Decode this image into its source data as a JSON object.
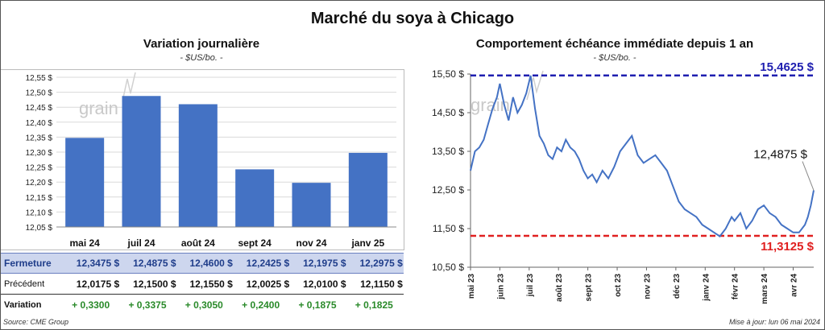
{
  "main_title": "Marché du soya à Chicago",
  "left": {
    "title": "Variation journalière",
    "unit": "- $US/bo. -",
    "watermark": "grain"
  },
  "right": {
    "title": "Comportement échéance immédiate depuis 1 an",
    "unit": "- $US/bo. -",
    "watermark": "grain",
    "high_label": "15,4625 $",
    "low_label": "11,3125 $",
    "last_label": "12,4875 $"
  },
  "table": {
    "close_label": "Fermeture",
    "prev_label": "Précédent",
    "var_label": "Variation",
    "close": [
      "12,3475 $",
      "12,4875 $",
      "12,4600 $",
      "12,2425 $",
      "12,1975 $",
      "12,2975 $"
    ],
    "prev": [
      "12,0175 $",
      "12,1500 $",
      "12,1550 $",
      "12,0025 $",
      "12,0100 $",
      "12,1150 $"
    ],
    "var": [
      "+ 0,3300",
      "+ 0,3375",
      "+ 0,3050",
      "+ 0,2400",
      "+ 0,1875",
      "+ 0,1825"
    ]
  },
  "footer": {
    "source": "Source: CME Group",
    "updated": "Mise à jour: lun 06 mai 2024"
  },
  "chart_data": [
    {
      "type": "bar",
      "title": "Variation journalière",
      "categories": [
        "mai 24",
        "juil 24",
        "août 24",
        "sept 24",
        "nov 24",
        "janv 25"
      ],
      "values": [
        12.3475,
        12.4875,
        12.46,
        12.2425,
        12.1975,
        12.2975
      ],
      "ylim": [
        12.05,
        12.55
      ],
      "yticks": [
        "12,05 $",
        "12,10 $",
        "12,15 $",
        "12,20 $",
        "12,25 $",
        "12,30 $",
        "12,35 $",
        "12,40 $",
        "12,45 $",
        "12,50 $",
        "12,55 $"
      ],
      "color": "#4472c4",
      "grid": true
    },
    {
      "type": "line",
      "title": "Comportement échéance immédiate depuis 1 an",
      "ylim": [
        10.5,
        15.5
      ],
      "yticks": [
        "10,50 $",
        "11,50 $",
        "12,50 $",
        "13,50 $",
        "14,50 $",
        "15,50 $"
      ],
      "xticks": [
        "mai 23",
        "juin 23",
        "juil 23",
        "août 23",
        "sept 23",
        "oct 23",
        "nov 23",
        "déc 23",
        "janv 24",
        "févr 24",
        "mars 24",
        "avr 24"
      ],
      "high": 15.4625,
      "low": 11.3125,
      "last": 12.4875,
      "high_color": "#1f1fb0",
      "low_color": "#e02020",
      "line_color": "#4472c4",
      "x": [
        0,
        0.15,
        0.3,
        0.45,
        0.6,
        0.75,
        0.9,
        1.0,
        1.15,
        1.3,
        1.45,
        1.6,
        1.75,
        1.9,
        2.05,
        2.2,
        2.35,
        2.5,
        2.65,
        2.8,
        2.95,
        3.1,
        3.25,
        3.4,
        3.55,
        3.7,
        3.85,
        4.0,
        4.15,
        4.3,
        4.5,
        4.7,
        4.9,
        5.1,
        5.3,
        5.5,
        5.7,
        5.9,
        6.1,
        6.3,
        6.5,
        6.7,
        6.9,
        7.1,
        7.3,
        7.5,
        7.7,
        7.9,
        8.1,
        8.3,
        8.5,
        8.7,
        8.9,
        9.0,
        9.2,
        9.4,
        9.6,
        9.8,
        10.0,
        10.2,
        10.4,
        10.6,
        10.8,
        11.0,
        11.2,
        11.4,
        11.5,
        11.6,
        11.7
      ],
      "y": [
        13.0,
        13.5,
        13.6,
        13.8,
        14.2,
        14.6,
        14.9,
        15.25,
        14.7,
        14.3,
        14.9,
        14.5,
        14.7,
        15.0,
        15.46,
        14.6,
        13.9,
        13.7,
        13.4,
        13.3,
        13.6,
        13.5,
        13.8,
        13.6,
        13.5,
        13.3,
        13.0,
        12.8,
        12.9,
        12.7,
        13.0,
        12.8,
        13.1,
        13.5,
        13.7,
        13.9,
        13.4,
        13.2,
        13.3,
        13.4,
        13.2,
        13.0,
        12.6,
        12.2,
        12.0,
        11.9,
        11.8,
        11.6,
        11.5,
        11.4,
        11.3,
        11.5,
        11.8,
        11.7,
        11.9,
        11.5,
        11.7,
        12.0,
        12.1,
        11.9,
        11.8,
        11.6,
        11.5,
        11.4,
        11.4,
        11.6,
        11.8,
        12.1,
        12.49
      ]
    }
  ]
}
